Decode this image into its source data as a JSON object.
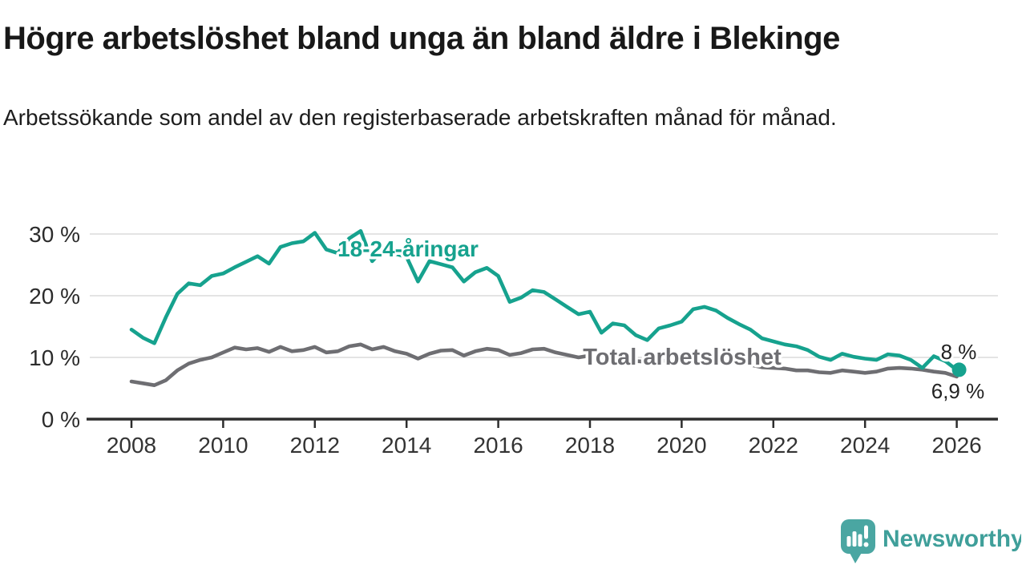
{
  "header": {
    "title": "Högre arbetslöshet bland unga än bland äldre i Blekinge",
    "subtitle": "Arbetssökande som andel av den registerbaserade arbetskraften månad för månad."
  },
  "chart_data": {
    "type": "line",
    "title": "Högre arbetslöshet bland unga än bland äldre i Blekinge",
    "subtitle": "Arbetssökande som andel av den registerbaserade arbetskraften månad för månad.",
    "unit": "%",
    "x_start": 2008,
    "x_step": 0.25,
    "x_end": 2026,
    "xticks": [
      2008,
      2010,
      2012,
      2014,
      2016,
      2018,
      2020,
      2022,
      2024,
      2026
    ],
    "yticks": [
      0,
      10,
      20,
      30
    ],
    "ytick_labels": [
      "0 %",
      "10 %",
      "20 %",
      "30 %"
    ],
    "ylim": [
      0,
      32
    ],
    "grid": "horizontal-only",
    "legend_position": "inline-labels",
    "colors": {
      "youth": "#16a28e",
      "total": "#6e6e72",
      "grid": "#dcdcdc",
      "axis": "#2d2d2d",
      "tick_text": "#333333",
      "annotation_text": "#222222"
    },
    "series": [
      {
        "name": "18-24-åringar",
        "color": "#16a28e",
        "end_label": "8 %",
        "end_value": 8.0,
        "end_marker": true,
        "values": [
          14.5,
          13.2,
          12.3,
          16.5,
          20.3,
          22.0,
          21.7,
          23.2,
          23.6,
          24.6,
          25.5,
          26.4,
          25.2,
          27.9,
          28.5,
          28.8,
          30.2,
          27.5,
          26.9,
          29.3,
          30.5,
          25.6,
          27.6,
          26.8,
          26.3,
          22.3,
          25.6,
          25.1,
          24.6,
          22.3,
          23.8,
          24.5,
          23.2,
          19.0,
          19.7,
          20.9,
          20.6,
          19.4,
          18.2,
          17.0,
          17.4,
          14.0,
          15.5,
          15.2,
          13.6,
          12.8,
          14.7,
          15.2,
          15.8,
          17.8,
          18.2,
          17.6,
          16.4,
          15.4,
          14.5,
          13.1,
          12.6,
          12.1,
          11.8,
          11.2,
          10.1,
          9.6,
          10.6,
          10.1,
          9.8,
          9.6,
          10.5,
          10.3,
          9.6,
          8.3,
          10.2,
          9.4,
          8.0
        ]
      },
      {
        "name": "Total arbetslöshet",
        "color": "#6e6e72",
        "end_label": "6,9 %",
        "end_value": 6.9,
        "end_marker": false,
        "values": [
          6.1,
          5.8,
          5.5,
          6.3,
          7.9,
          9.0,
          9.6,
          10.0,
          10.8,
          11.6,
          11.3,
          11.5,
          10.9,
          11.7,
          11.0,
          11.2,
          11.7,
          10.8,
          11.0,
          11.8,
          12.1,
          11.3,
          11.7,
          11.0,
          10.6,
          9.8,
          10.6,
          11.1,
          11.2,
          10.3,
          11.0,
          11.4,
          11.2,
          10.4,
          10.7,
          11.3,
          11.4,
          10.8,
          10.4,
          10.0,
          10.3,
          9.8,
          9.9,
          9.6,
          9.4,
          9.3,
          9.5,
          9.4,
          9.6,
          10.0,
          10.1,
          9.8,
          9.4,
          9.1,
          8.8,
          8.4,
          8.3,
          8.2,
          7.9,
          7.9,
          7.6,
          7.5,
          7.9,
          7.7,
          7.5,
          7.7,
          8.2,
          8.3,
          8.2,
          8.0,
          7.7,
          7.5,
          6.9
        ]
      }
    ]
  },
  "footer": {
    "brand": "Newsworthy",
    "brand_color": "#3f9f9a",
    "logo_color": "#4aa6a2"
  }
}
